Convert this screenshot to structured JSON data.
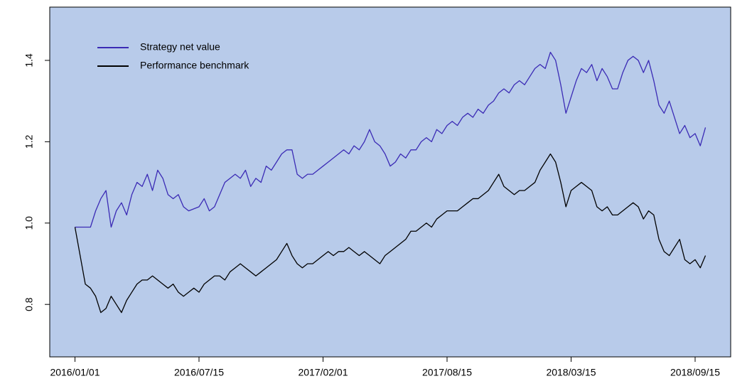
{
  "chart_data": {
    "type": "line",
    "categories": [
      "2016/01/01",
      null,
      null,
      null,
      null,
      null,
      null,
      null,
      null,
      null,
      null,
      null,
      null,
      null,
      null,
      null,
      null,
      null,
      null,
      null,
      null,
      null,
      null,
      null,
      "2016/07/15",
      null,
      null,
      null,
      null,
      null,
      null,
      null,
      null,
      null,
      null,
      null,
      null,
      null,
      null,
      null,
      null,
      null,
      null,
      null,
      null,
      null,
      null,
      null,
      "2017/02/01",
      null,
      null,
      null,
      null,
      null,
      null,
      null,
      null,
      null,
      null,
      null,
      null,
      null,
      null,
      null,
      null,
      null,
      null,
      null,
      null,
      null,
      null,
      null,
      "2017/08/15",
      null,
      null,
      null,
      null,
      null,
      null,
      null,
      null,
      null,
      null,
      null,
      null,
      null,
      null,
      null,
      null,
      null,
      null,
      null,
      null,
      null,
      null,
      null,
      "2018/03/15",
      null,
      null,
      null,
      null,
      null,
      null,
      null,
      null,
      null,
      null,
      null,
      null,
      null,
      null,
      null,
      null,
      null,
      null,
      null,
      null,
      null,
      null,
      null,
      "2018/09/15",
      null,
      null
    ],
    "series": [
      {
        "name": "Strategy net value",
        "color": "#3b2bb5",
        "values": [
          0.99,
          0.99,
          0.99,
          0.99,
          1.03,
          1.06,
          1.08,
          0.99,
          1.03,
          1.05,
          1.02,
          1.07,
          1.1,
          1.09,
          1.12,
          1.08,
          1.13,
          1.11,
          1.07,
          1.06,
          1.07,
          1.04,
          1.03,
          1.035,
          1.04,
          1.06,
          1.03,
          1.04,
          1.07,
          1.1,
          1.11,
          1.12,
          1.11,
          1.13,
          1.09,
          1.11,
          1.1,
          1.14,
          1.13,
          1.15,
          1.17,
          1.18,
          1.18,
          1.12,
          1.11,
          1.12,
          1.12,
          1.13,
          1.14,
          1.15,
          1.16,
          1.17,
          1.18,
          1.17,
          1.19,
          1.18,
          1.2,
          1.23,
          1.2,
          1.19,
          1.17,
          1.14,
          1.15,
          1.17,
          1.16,
          1.18,
          1.18,
          1.2,
          1.21,
          1.2,
          1.23,
          1.22,
          1.24,
          1.25,
          1.24,
          1.26,
          1.27,
          1.26,
          1.28,
          1.27,
          1.29,
          1.3,
          1.32,
          1.33,
          1.32,
          1.34,
          1.35,
          1.34,
          1.36,
          1.38,
          1.39,
          1.38,
          1.42,
          1.4,
          1.34,
          1.27,
          1.31,
          1.35,
          1.38,
          1.37,
          1.39,
          1.35,
          1.38,
          1.36,
          1.33,
          1.33,
          1.37,
          1.4,
          1.41,
          1.4,
          1.37,
          1.4,
          1.35,
          1.29,
          1.27,
          1.3,
          1.26,
          1.22,
          1.24,
          1.21,
          1.22,
          1.19,
          1.235
        ]
      },
      {
        "name": "Performance benchmark",
        "color": "#000000",
        "values": [
          0.99,
          0.92,
          0.85,
          0.84,
          0.82,
          0.78,
          0.79,
          0.82,
          0.8,
          0.78,
          0.81,
          0.83,
          0.85,
          0.86,
          0.86,
          0.87,
          0.86,
          0.85,
          0.84,
          0.85,
          0.83,
          0.82,
          0.83,
          0.84,
          0.83,
          0.85,
          0.86,
          0.87,
          0.87,
          0.86,
          0.88,
          0.89,
          0.9,
          0.89,
          0.88,
          0.87,
          0.88,
          0.89,
          0.9,
          0.91,
          0.93,
          0.95,
          0.92,
          0.9,
          0.89,
          0.9,
          0.9,
          0.91,
          0.92,
          0.93,
          0.92,
          0.93,
          0.93,
          0.94,
          0.93,
          0.92,
          0.93,
          0.92,
          0.91,
          0.9,
          0.92,
          0.93,
          0.94,
          0.95,
          0.96,
          0.98,
          0.98,
          0.99,
          1.0,
          0.99,
          1.01,
          1.02,
          1.03,
          1.03,
          1.03,
          1.04,
          1.05,
          1.06,
          1.06,
          1.07,
          1.08,
          1.1,
          1.12,
          1.09,
          1.08,
          1.07,
          1.08,
          1.08,
          1.09,
          1.1,
          1.13,
          1.15,
          1.17,
          1.15,
          1.1,
          1.04,
          1.08,
          1.09,
          1.1,
          1.09,
          1.08,
          1.04,
          1.03,
          1.04,
          1.02,
          1.02,
          1.03,
          1.04,
          1.05,
          1.04,
          1.01,
          1.03,
          1.02,
          0.96,
          0.93,
          0.92,
          0.94,
          0.96,
          0.91,
          0.9,
          0.91,
          0.89,
          0.92
        ]
      }
    ],
    "ylim": [
      0.671,
      1.531
    ],
    "yticks": [
      0.8,
      {
        "value": 1,
        "label": "1.0"
      },
      1.2,
      1.4
    ],
    "legend": "top-left",
    "background": "#b8cbea"
  }
}
